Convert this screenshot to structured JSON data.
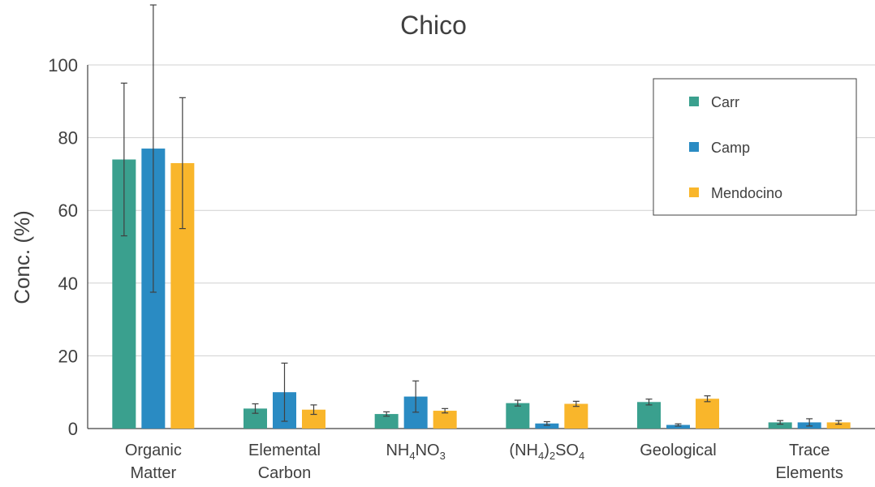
{
  "chart_data": {
    "type": "bar",
    "title": "Chico",
    "ylabel": "Conc. (%)",
    "xlabel": "",
    "ylim": [
      0,
      100
    ],
    "yticks": [
      0,
      20,
      40,
      60,
      80,
      100
    ],
    "grid": true,
    "legend_position": "top-right",
    "categories": [
      {
        "lines": [
          [
            {
              "t": "Organic"
            }
          ],
          [
            {
              "t": "Matter"
            }
          ]
        ]
      },
      {
        "lines": [
          [
            {
              "t": "Elemental"
            }
          ],
          [
            {
              "t": "Carbon"
            }
          ]
        ]
      },
      {
        "lines": [
          [
            {
              "t": "NH"
            },
            {
              "t": "4",
              "sub": true
            },
            {
              "t": "NO"
            },
            {
              "t": "3",
              "sub": true
            }
          ]
        ]
      },
      {
        "lines": [
          [
            {
              "t": "(NH"
            },
            {
              "t": "4",
              "sub": true
            },
            {
              "t": ")"
            },
            {
              "t": "2",
              "sub": true
            },
            {
              "t": "SO"
            },
            {
              "t": "4",
              "sub": true
            }
          ]
        ]
      },
      {
        "lines": [
          [
            {
              "t": "Geological"
            }
          ]
        ]
      },
      {
        "lines": [
          [
            {
              "t": "Trace"
            }
          ],
          [
            {
              "t": "Elements"
            }
          ]
        ]
      }
    ],
    "series": [
      {
        "name": "Carr",
        "color": "#3aa08e",
        "values": [
          74,
          5.5,
          4,
          7,
          7.3,
          1.7
        ],
        "errors": [
          21,
          1.3,
          0.6,
          0.8,
          0.8,
          0.5
        ]
      },
      {
        "name": "Camp",
        "color": "#2a8bc3",
        "values": [
          77,
          10,
          8.8,
          1.4,
          1,
          1.7
        ],
        "errors": [
          39.5,
          8,
          4.3,
          0.5,
          0.3,
          1
        ]
      },
      {
        "name": "Mendocino",
        "color": "#f9b62b",
        "values": [
          73,
          5.2,
          4.9,
          6.8,
          8.2,
          1.7
        ],
        "errors": [
          18,
          1.3,
          0.6,
          0.7,
          0.8,
          0.5
        ]
      }
    ]
  }
}
